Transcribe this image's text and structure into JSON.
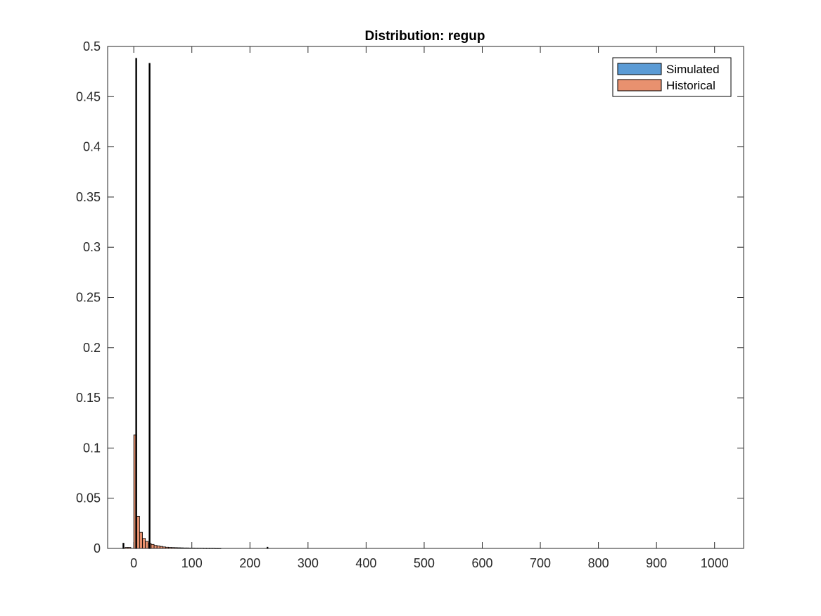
{
  "chart_data": {
    "type": "bar",
    "title": "Distribution: regup",
    "xlabel": "",
    "ylabel": "",
    "xlim": [
      -45,
      1050
    ],
    "ylim": [
      0,
      0.5
    ],
    "x_ticks": [
      0,
      100,
      200,
      300,
      400,
      500,
      600,
      700,
      800,
      900,
      1000
    ],
    "y_ticks": [
      0,
      0.05,
      0.1,
      0.15,
      0.2,
      0.25,
      0.3,
      0.35,
      0.4,
      0.45,
      0.5
    ],
    "x_tick_labels": [
      "0",
      "100",
      "200",
      "300",
      "400",
      "500",
      "600",
      "700",
      "800",
      "900",
      "1000"
    ],
    "y_tick_labels": [
      "0",
      "0.05",
      "0.1",
      "0.15",
      "0.2",
      "0.25",
      "0.3",
      "0.35",
      "0.4",
      "0.45",
      "0.5"
    ],
    "grid": false,
    "legend_position": "top-right",
    "series": [
      {
        "name": "Simulated",
        "color": "#5b9bd5",
        "bin_width": 0.8,
        "bins": [
          {
            "x": -18,
            "y": 0.005
          },
          {
            "x": 4,
            "y": 0.488
          },
          {
            "x": 27,
            "y": 0.483
          },
          {
            "x": 230,
            "y": 0.001
          }
        ]
      },
      {
        "name": "Historical",
        "color": "#e8916f",
        "bin_width": 5,
        "bins": [
          {
            "x": -12.5,
            "y": 0.001
          },
          {
            "x": -7.5,
            "y": 0.001
          },
          {
            "x": 2.5,
            "y": 0.113
          },
          {
            "x": 7.5,
            "y": 0.032
          },
          {
            "x": 12.5,
            "y": 0.016
          },
          {
            "x": 17.5,
            "y": 0.01
          },
          {
            "x": 22.5,
            "y": 0.007
          },
          {
            "x": 27.5,
            "y": 0.005
          },
          {
            "x": 32.5,
            "y": 0.004
          },
          {
            "x": 37.5,
            "y": 0.003
          },
          {
            "x": 42.5,
            "y": 0.0025
          },
          {
            "x": 47.5,
            "y": 0.002
          },
          {
            "x": 52.5,
            "y": 0.0015
          },
          {
            "x": 57.5,
            "y": 0.0012
          },
          {
            "x": 62.5,
            "y": 0.001
          },
          {
            "x": 67.5,
            "y": 0.0009
          },
          {
            "x": 72.5,
            "y": 0.0008
          },
          {
            "x": 77.5,
            "y": 0.0007
          },
          {
            "x": 82.5,
            "y": 0.0006
          },
          {
            "x": 87.5,
            "y": 0.0005
          },
          {
            "x": 92.5,
            "y": 0.0005
          },
          {
            "x": 97.5,
            "y": 0.0004
          },
          {
            "x": 102.5,
            "y": 0.0004
          },
          {
            "x": 107.5,
            "y": 0.0003
          },
          {
            "x": 112.5,
            "y": 0.0003
          },
          {
            "x": 117.5,
            "y": 0.0003
          },
          {
            "x": 122.5,
            "y": 0.0002
          },
          {
            "x": 127.5,
            "y": 0.0002
          },
          {
            "x": 132.5,
            "y": 0.0002
          },
          {
            "x": 137.5,
            "y": 0.0002
          },
          {
            "x": 142.5,
            "y": 0.0001
          },
          {
            "x": 147.5,
            "y": 0.0001
          }
        ]
      }
    ]
  }
}
